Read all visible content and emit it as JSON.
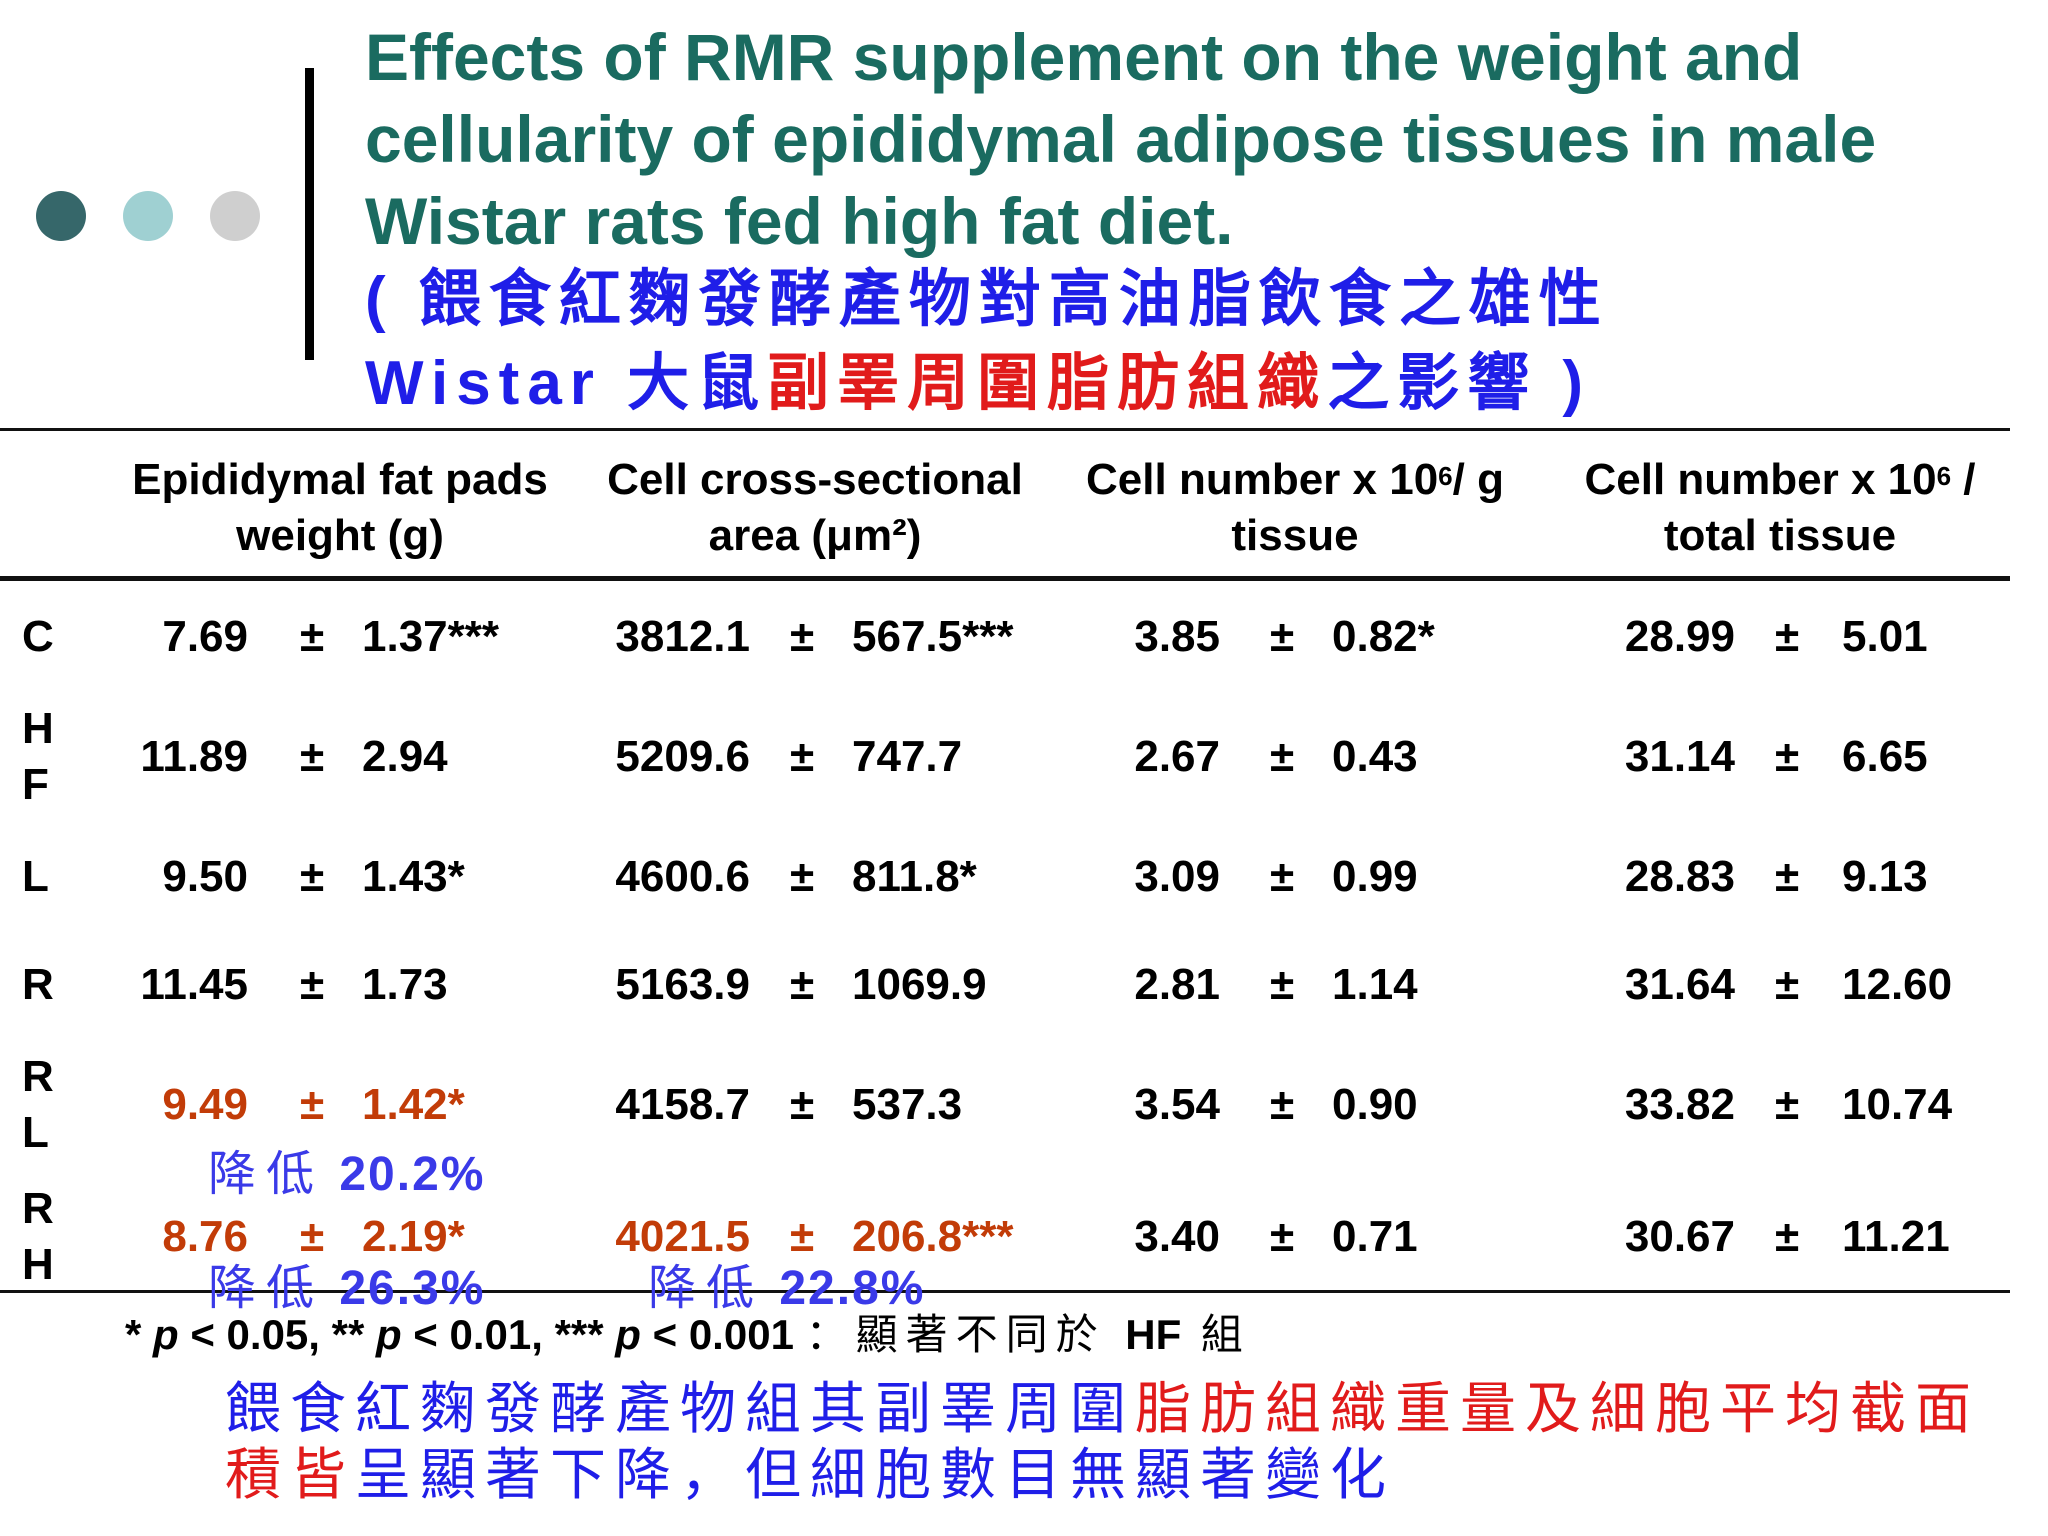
{
  "colors": {
    "title_teal": "#1a6b60",
    "chinese_blue": "#1f1ee8",
    "highlight_red": "#e11b1b",
    "value_orange": "#c23c08",
    "note_blue": "#3a3ae8",
    "dot_dark": "#36676a",
    "dot_light": "#9fd0d2",
    "dot_gray": "#cfcfcf"
  },
  "title": {
    "english": "Effects of RMR supplement on the weight and cellularity of epididymal adipose tissues in male Wistar rats fed high fat diet.",
    "chinese_part1": "( 餵食紅麴發酵產物對高油脂飲食之雄性",
    "chinese_part2": "Wistar 大鼠",
    "chinese_red": "副睪周圍脂肪組織",
    "chinese_part3": "之影響 )"
  },
  "table": {
    "headers": [
      {
        "line1": "Epididymal fat pads",
        "line2": "weight (g)"
      },
      {
        "line1": "Cell cross-sectional",
        "line2": "area (μm²)"
      },
      {
        "line1_a": "Cell number x 10",
        "line1_sup": "6",
        "line1_b": "/ g",
        "line2": "tissue"
      },
      {
        "line1_a": "Cell number x 10",
        "line1_sup": "6",
        "line1_b": " /",
        "line2": "total tissue"
      }
    ],
    "pm": "±",
    "rows": [
      {
        "label": [
          "C"
        ],
        "cells": [
          [
            "7.69",
            "1.37***"
          ],
          [
            "3812.1",
            "567.5***"
          ],
          [
            "3.85",
            "0.82*"
          ],
          [
            "28.99",
            "5.01"
          ]
        ]
      },
      {
        "label": [
          "H",
          "F"
        ],
        "cells": [
          [
            "11.89",
            "2.94"
          ],
          [
            "5209.6",
            "747.7"
          ],
          [
            "2.67",
            "0.43"
          ],
          [
            "31.14",
            "6.65"
          ]
        ]
      },
      {
        "label": [
          "L"
        ],
        "cells": [
          [
            "9.50",
            "1.43*"
          ],
          [
            "4600.6",
            "811.8*"
          ],
          [
            "3.09",
            "0.99"
          ],
          [
            "28.83",
            "9.13"
          ]
        ]
      },
      {
        "label": [
          "R"
        ],
        "cells": [
          [
            "11.45",
            "1.73"
          ],
          [
            "5163.9",
            "1069.9"
          ],
          [
            "2.81",
            "1.14"
          ],
          [
            "31.64",
            "12.60"
          ]
        ]
      },
      {
        "label": [
          "R",
          "L"
        ],
        "cells": [
          [
            "9.49",
            "1.42*"
          ],
          [
            "4158.7",
            "537.3"
          ],
          [
            "3.54",
            "0.90"
          ],
          [
            "33.82",
            "10.74"
          ]
        ]
      },
      {
        "label": [
          "R",
          "H"
        ],
        "cells": [
          [
            "8.76",
            "2.19*"
          ],
          [
            "4021.5",
            "206.8***"
          ],
          [
            "3.40",
            "0.71"
          ],
          [
            "30.67",
            "11.21"
          ]
        ]
      }
    ],
    "notes": {
      "rl_weight": {
        "zh": "降低",
        "pct": "20.2%"
      },
      "rh_weight": {
        "zh": "降低",
        "pct": "26.3%"
      },
      "rh_area": {
        "zh": "降低",
        "pct": "22.8%"
      }
    }
  },
  "footnote": {
    "star1": "* ",
    "p1": "p",
    "t1": " < 0.05, ** ",
    "p2": "p",
    "t2": " < 0.01, *** ",
    "p3": "p",
    "t3": " < 0.001 ",
    "zh1": "：顯著不同於 ",
    "hf": "HF",
    "zh2": " 組"
  },
  "summary": {
    "part1": "餵食紅麴發酵產物組其副睪周圍",
    "red": "脂肪組織重量及細胞平均截面積皆",
    "part2": "呈顯著下降，但細胞數目無顯著變化"
  }
}
